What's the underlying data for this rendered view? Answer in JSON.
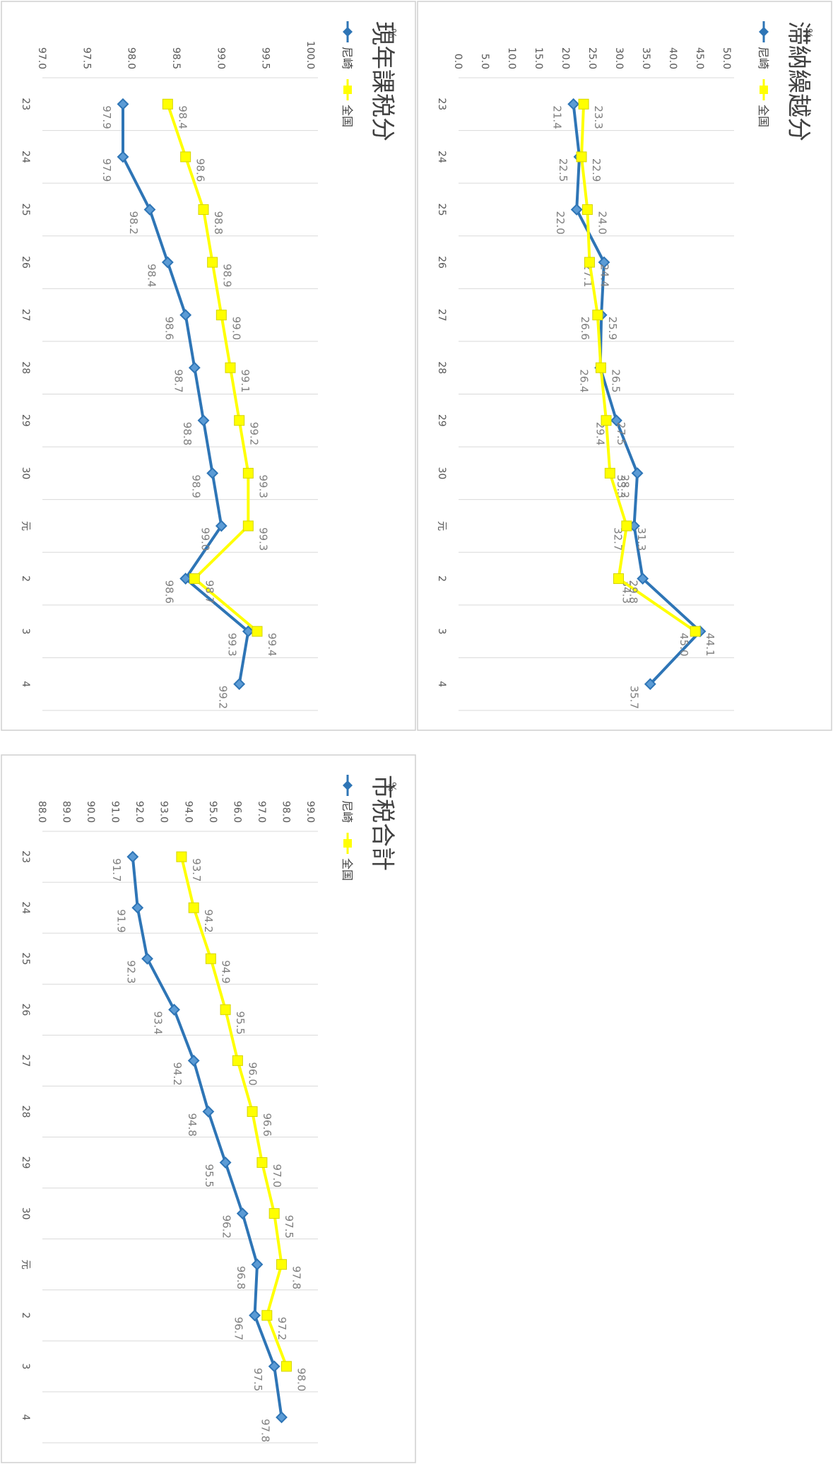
{
  "chart_data": [
    {
      "type": "line",
      "title": "市税合計",
      "ylabel": "%",
      "xlabel": "",
      "ylim": [
        88.0,
        99.0
      ],
      "ytick_labels": [
        "88.0",
        "89.0",
        "90.0",
        "91.0",
        "92.0",
        "93.0",
        "94.0",
        "95.0",
        "96.0",
        "97.0",
        "98.0",
        "99.0"
      ],
      "categories": [
        "23",
        "24",
        "25",
        "26",
        "27",
        "28",
        "29",
        "30",
        "元",
        "2",
        "3",
        "4"
      ],
      "series": [
        {
          "name": "尼崎",
          "color": "#2e75b6",
          "marker": "diamond",
          "values": [
            91.7,
            91.9,
            92.3,
            93.4,
            94.2,
            94.8,
            95.5,
            96.2,
            96.8,
            96.7,
            97.5,
            97.8
          ]
        },
        {
          "name": "全国",
          "color": "#ffff00",
          "marker": "square",
          "values": [
            93.7,
            94.2,
            94.9,
            95.5,
            96.0,
            96.6,
            97.0,
            97.5,
            97.8,
            97.2,
            98.0,
            null
          ]
        }
      ],
      "legend": "top-left",
      "grid": true
    },
    {
      "type": "line",
      "title": "現年課税分",
      "ylabel": "%",
      "xlabel": "",
      "ylim": [
        97.0,
        100.0
      ],
      "ytick_labels": [
        "97.0",
        "97.5",
        "98.0",
        "98.5",
        "99.0",
        "99.5",
        "100.0"
      ],
      "categories": [
        "23",
        "24",
        "25",
        "26",
        "27",
        "28",
        "29",
        "30",
        "元",
        "2",
        "3",
        "4"
      ],
      "series": [
        {
          "name": "尼崎",
          "color": "#2e75b6",
          "marker": "diamond",
          "values": [
            97.9,
            97.9,
            98.2,
            98.4,
            98.6,
            98.7,
            98.8,
            98.9,
            99.0,
            98.6,
            99.3,
            99.2
          ]
        },
        {
          "name": "全国",
          "color": "#ffff00",
          "marker": "square",
          "values": [
            98.4,
            98.6,
            98.8,
            98.9,
            99.0,
            99.1,
            99.2,
            99.3,
            99.3,
            98.7,
            99.4,
            null
          ]
        }
      ],
      "legend": "top-left",
      "grid": true
    },
    {
      "type": "line",
      "title": "滞納繰越分",
      "ylabel": "%",
      "xlabel": "",
      "ylim": [
        0.0,
        50.0
      ],
      "ytick_labels": [
        "0.0",
        "5.0",
        "10.0",
        "15.0",
        "20.0",
        "25.0",
        "30.0",
        "35.0",
        "40.0",
        "45.0",
        "50.0"
      ],
      "categories": [
        "23",
        "24",
        "25",
        "26",
        "27",
        "28",
        "29",
        "30",
        "元",
        "2",
        "3",
        "4"
      ],
      "series": [
        {
          "name": "尼崎",
          "color": "#2e75b6",
          "marker": "diamond",
          "values": [
            21.4,
            22.5,
            22.0,
            27.1,
            26.6,
            26.4,
            29.4,
            33.3,
            32.7,
            34.3,
            45.0,
            35.7
          ]
        },
        {
          "name": "全国",
          "color": "#ffff00",
          "marker": "square",
          "values": [
            23.3,
            22.9,
            24.0,
            24.4,
            25.9,
            26.5,
            27.5,
            28.2,
            31.3,
            29.8,
            44.1,
            null
          ]
        }
      ],
      "legend": "top-left",
      "grid": true
    }
  ]
}
